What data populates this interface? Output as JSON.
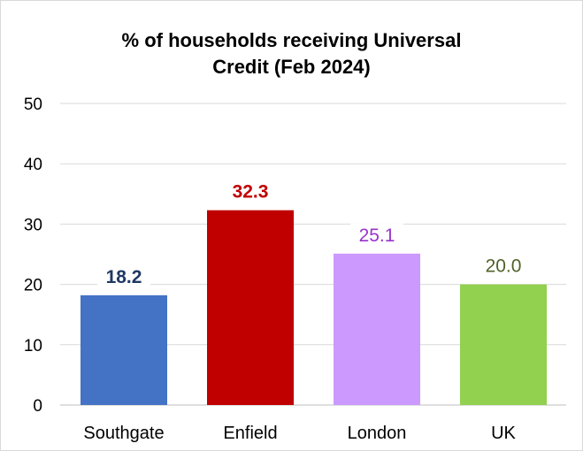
{
  "chart_data": {
    "type": "bar",
    "title_lines": [
      "% of households receiving Universal",
      "Credit (Feb 2024)"
    ],
    "categories": [
      "Southgate",
      "Enfield",
      "London",
      "UK"
    ],
    "values": [
      18.2,
      32.3,
      25.1,
      20.0
    ],
    "value_labels": [
      "18.2",
      "32.3",
      "25.1",
      "20.0"
    ],
    "colors": [
      "#4472C4",
      "#C00000",
      "#CC99FF",
      "#92D050"
    ],
    "label_colors": [
      "#1F3864",
      "#C00000",
      "#9933CC",
      "#4F6228"
    ],
    "label_bold": [
      true,
      true,
      false,
      false
    ],
    "yticks": [
      0,
      10,
      20,
      30,
      40,
      50
    ],
    "ylim": [
      0,
      50
    ],
    "grid": true,
    "legend": "none"
  }
}
